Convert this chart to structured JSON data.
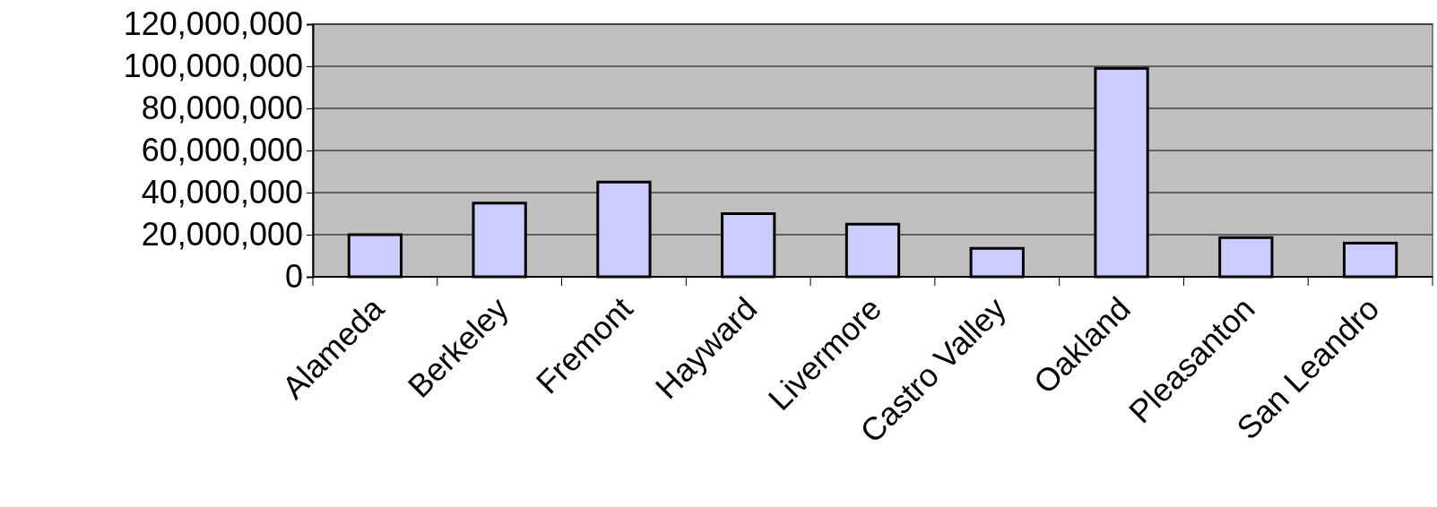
{
  "chart_data": {
    "type": "bar",
    "categories": [
      "Alameda",
      "Berkeley",
      "Fremont",
      "Hayward",
      "Livermore",
      "Castro Valley",
      "Oakland",
      "Pleasanton",
      "San Leandro"
    ],
    "values": [
      20000000,
      35000000,
      45000000,
      30000000,
      25000000,
      13500000,
      99000000,
      18600000,
      16000000
    ],
    "color": "#ccccff",
    "ylim": [
      0,
      120000000
    ],
    "yticks": [
      {
        "value": 0,
        "label": "0"
      },
      {
        "value": 20000000,
        "label": "20,000,000"
      },
      {
        "value": 40000000,
        "label": "40,000,000"
      },
      {
        "value": 60000000,
        "label": "60,000,000"
      },
      {
        "value": 80000000,
        "label": "80,000,000"
      },
      {
        "value": 100000000,
        "label": "100,000,000"
      },
      {
        "value": 120000000,
        "label": "120,000,000"
      }
    ],
    "grid": "y"
  }
}
